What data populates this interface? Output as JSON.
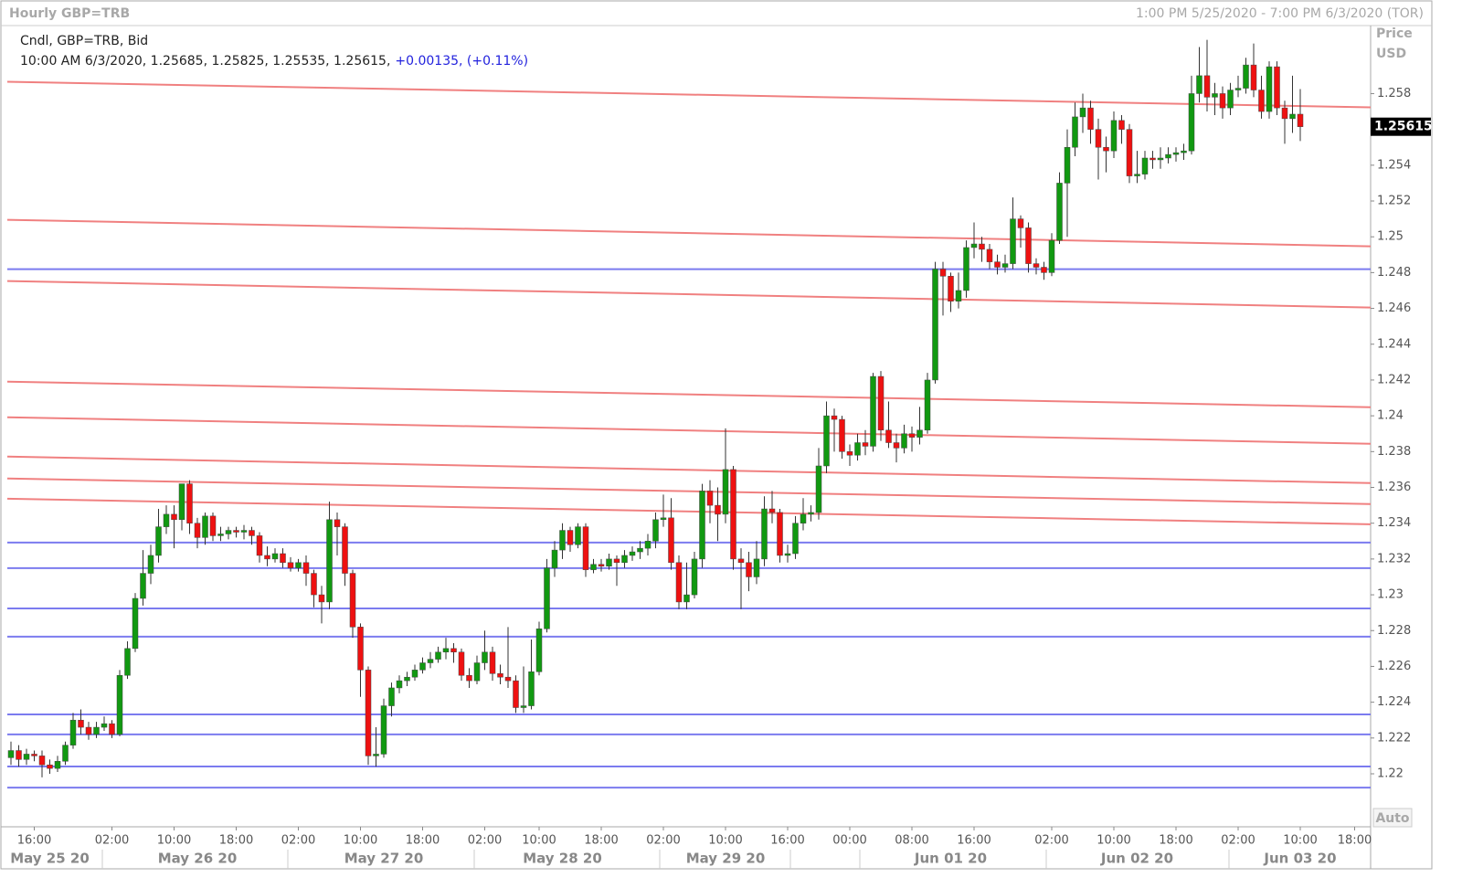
{
  "chart_data": {
    "type": "candlestick",
    "title": "Hourly GBP=TRB",
    "subtitle": "1:00 PM 5/25/2020 - 7:00 PM 6/3/2020 (TOR)",
    "y_axis_label": "Price",
    "y_axis_unit": "USD",
    "legend_line1": "Cndl, GBP=TRB, Bid",
    "legend_line2": "10:00 AM 6/3/2020, 1.25685, 1.25825, 1.25535, 1.25615,",
    "legend_change": "+0.00135, (+0.11%)",
    "auto_button": "Auto",
    "up_color": "#119911",
    "down_color": "#ee1111",
    "trendline_color": "#f08080",
    "level_color": "#7b7bef",
    "ylim": [
      1.21704,
      1.2618
    ],
    "yticks": [
      1.22,
      1.222,
      1.224,
      1.226,
      1.228,
      1.23,
      1.232,
      1.234,
      1.236,
      1.238,
      1.24,
      1.242,
      1.244,
      1.246,
      1.248,
      1.25,
      1.252,
      1.254,
      1.256,
      1.258
    ],
    "categories": [
      null,
      null,
      null,
      "16:00",
      null,
      null,
      null,
      null,
      null,
      null,
      null,
      null,
      null,
      "02:00",
      null,
      null,
      null,
      null,
      null,
      null,
      null,
      "10:00",
      null,
      null,
      null,
      null,
      null,
      null,
      null,
      "18:00",
      null,
      null,
      null,
      null,
      null,
      null,
      null,
      "02:00",
      null,
      null,
      null,
      null,
      null,
      null,
      null,
      "10:00",
      null,
      null,
      null,
      null,
      null,
      null,
      null,
      "18:00",
      null,
      null,
      null,
      null,
      null,
      null,
      null,
      "02:00",
      null,
      null,
      null,
      null,
      null,
      null,
      "10:00",
      null,
      null,
      null,
      null,
      null,
      null,
      null,
      "18:00",
      null,
      null,
      null,
      null,
      null,
      null,
      null,
      "02:00",
      null,
      null,
      null,
      null,
      null,
      null,
      null,
      "10:00",
      null,
      null,
      null,
      null,
      null,
      null,
      null,
      "16:00",
      null,
      null,
      null,
      null,
      null,
      null,
      null,
      "00:00",
      null,
      null,
      null,
      null,
      null,
      null,
      null,
      "08:00",
      null,
      null,
      null,
      null,
      null,
      null,
      null,
      "16:00",
      null,
      null,
      null,
      null,
      null,
      null,
      null,
      null,
      null,
      "02:00",
      null,
      null,
      null,
      null,
      null,
      null,
      null,
      "10:00",
      null,
      null,
      null,
      null,
      null,
      null,
      null,
      "18:00",
      null,
      null,
      null,
      null,
      null,
      null,
      null,
      "02:00",
      null,
      null,
      null,
      null,
      null,
      null,
      null,
      "10:00",
      null,
      null,
      null,
      null,
      null,
      null,
      "18:00"
    ],
    "dates": [
      null,
      null,
      null,
      null,
      null,
      "May 25 20",
      null,
      null,
      null,
      null,
      null,
      null,
      null,
      null,
      null,
      null,
      null,
      null,
      null,
      null,
      null,
      null,
      null,
      null,
      "May 26 20",
      null,
      null,
      null,
      null,
      null,
      null,
      null,
      null,
      null,
      null,
      null,
      null,
      null,
      null,
      null,
      null,
      null,
      null,
      null,
      null,
      null,
      null,
      null,
      "May 27 20",
      null,
      null,
      null,
      null,
      null,
      null,
      null,
      null,
      null,
      null,
      null,
      null,
      null,
      null,
      null,
      null,
      null,
      null,
      null,
      null,
      null,
      null,
      "May 28 20",
      null,
      null,
      null,
      null,
      null,
      null,
      null,
      null,
      null,
      null,
      null,
      null,
      null,
      null,
      null,
      null,
      null,
      null,
      null,
      null,
      "May 29 20",
      null,
      null,
      null,
      null,
      null,
      null,
      null,
      null,
      null,
      null,
      null,
      null,
      null,
      null,
      null,
      null,
      null,
      null,
      null,
      null,
      null,
      null,
      null,
      null,
      null,
      null,
      null,
      null,
      "Jun 01 20",
      null,
      null,
      null,
      null,
      null,
      null,
      null,
      null,
      null,
      null,
      null,
      null,
      null,
      null,
      null,
      null,
      null,
      null,
      null,
      null,
      null,
      null,
      null,
      "Jun 02 20",
      null,
      null,
      null,
      null,
      null,
      null,
      null,
      null,
      null,
      null,
      null,
      null,
      null,
      null,
      null,
      null,
      null,
      null,
      null,
      null,
      "Jun 03 20",
      null,
      null,
      null,
      null,
      null,
      null,
      null
    ],
    "open": [
      1.2209,
      1.2213,
      1.2208,
      1.2211,
      1.221,
      1.2205,
      1.2203,
      1.2207,
      1.2216,
      1.223,
      1.2226,
      1.2222,
      1.2226,
      1.2228,
      1.2222,
      1.2255,
      1.227,
      1.2298,
      1.2312,
      1.2322,
      1.2338,
      1.2345,
      1.2342,
      1.2362,
      1.234,
      1.2332,
      1.2344,
      1.2333,
      1.2334,
      1.2336,
      1.2335,
      1.2336,
      1.2333,
      1.2322,
      1.232,
      1.2323,
      1.2318,
      1.2315,
      1.2318,
      1.2312,
      1.23,
      1.2296,
      1.2342,
      1.2338,
      1.2312,
      1.2282,
      1.2258,
      1.221,
      1.2211,
      1.2238,
      1.2248,
      1.2252,
      1.2254,
      1.2258,
      1.2262,
      1.2264,
      1.2268,
      1.227,
      1.2268,
      1.2255,
      1.2252,
      1.2262,
      1.2268,
      1.2256,
      1.2254,
      1.2252,
      1.2237,
      1.2238,
      1.2257,
      1.2281,
      1.2315,
      1.2325,
      1.2336,
      1.2328,
      1.2338,
      1.2314,
      1.2317,
      1.2316,
      1.232,
      1.2318,
      1.2322,
      1.2324,
      1.2326,
      1.233,
      1.2342,
      1.2343,
      1.2318,
      1.2296,
      1.23,
      1.232,
      1.2358,
      1.235,
      1.2345,
      1.237,
      1.232,
      1.2318,
      1.231,
      1.232,
      1.2348,
      1.2346,
      1.2322,
      1.2323,
      1.234,
      1.2345,
      1.2346,
      1.2372,
      1.24,
      1.2398,
      1.238,
      1.2378,
      1.2385,
      1.2383,
      1.2422,
      1.2392,
      1.2385,
      1.2382,
      1.239,
      1.2388,
      1.2392,
      1.242,
      1.2482,
      1.2478,
      1.2464,
      1.247,
      1.2494,
      1.2496,
      1.2493,
      1.2486,
      1.2483,
      1.2485,
      1.251,
      1.2505,
      1.2485,
      1.2483,
      1.248,
      1.2498,
      1.253,
      1.255,
      1.2567,
      1.2572,
      1.256,
      1.255,
      1.2548,
      1.2565,
      1.256,
      1.2534,
      1.2535,
      1.2544,
      1.2543,
      1.2544,
      1.2546,
      1.2547,
      1.2548,
      1.258,
      1.259,
      1.2578,
      1.258,
      1.2572,
      1.2582,
      1.2583,
      1.2596,
      1.2582,
      1.257,
      1.2595,
      1.2572,
      1.2566,
      1.25685,
      null,
      null,
      null,
      null,
      null,
      null,
      null
    ],
    "high": [
      1.2218,
      1.2216,
      1.2214,
      1.2213,
      1.2213,
      1.2208,
      1.221,
      1.2218,
      1.2234,
      1.2236,
      1.2229,
      1.2229,
      1.2232,
      1.223,
      1.2258,
      1.2274,
      1.2301,
      1.2325,
      1.2328,
      1.2348,
      1.235,
      1.235,
      1.2362,
      1.2364,
      1.2343,
      1.2346,
      1.2346,
      1.2338,
      1.2338,
      1.2338,
      1.2339,
      1.2338,
      1.2335,
      1.2327,
      1.2326,
      1.2326,
      1.2321,
      1.232,
      1.2322,
      1.2314,
      1.2305,
      1.2352,
      1.2346,
      1.234,
      1.2314,
      1.2284,
      1.226,
      1.2226,
      1.2242,
      1.2251,
      1.2255,
      1.2257,
      1.2261,
      1.2265,
      1.2268,
      1.2271,
      1.2276,
      1.2273,
      1.227,
      1.2259,
      1.2266,
      1.228,
      1.2271,
      1.2261,
      1.2282,
      1.2255,
      1.226,
      1.2275,
      1.2285,
      1.232,
      1.233,
      1.234,
      1.2338,
      1.234,
      1.234,
      1.232,
      1.232,
      1.2323,
      1.2322,
      1.2325,
      1.2327,
      1.233,
      1.2334,
      1.2346,
      1.2356,
      1.2354,
      1.2322,
      1.2318,
      1.2324,
      1.2362,
      1.2364,
      1.236,
      1.2393,
      1.2372,
      1.2326,
      1.2324,
      1.233,
      1.2355,
      1.2358,
      1.2348,
      1.2328,
      1.2344,
      1.2354,
      1.235,
      1.2382,
      1.2408,
      1.2404,
      1.24,
      1.2384,
      1.239,
      1.2392,
      1.2424,
      1.2425,
      1.2408,
      1.239,
      1.2395,
      1.2394,
      1.2405,
      1.2424,
      1.2486,
      1.2486,
      1.248,
      1.248,
      1.2498,
      1.2508,
      1.25,
      1.2496,
      1.249,
      1.249,
      1.2522,
      1.2512,
      1.2508,
      1.2488,
      1.2486,
      1.2502,
      1.2536,
      1.256,
      1.2575,
      1.258,
      1.2576,
      1.2566,
      1.2556,
      1.257,
      1.2568,
      1.2563,
      1.2548,
      1.2548,
      1.2548,
      1.255,
      1.255,
      1.255,
      1.2552,
      1.259,
      1.2606,
      1.261,
      1.2586,
      1.2584,
      1.2586,
      1.259,
      1.26,
      1.2608,
      1.259,
      1.2598,
      1.2598,
      1.2576,
      1.259,
      1.25825,
      null,
      null,
      null,
      null,
      null,
      null,
      null
    ],
    "low": [
      1.2205,
      1.2204,
      1.2205,
      1.2207,
      1.2198,
      1.22,
      1.2201,
      1.2205,
      1.2214,
      1.2222,
      1.2219,
      1.222,
      1.2224,
      1.222,
      1.2221,
      1.2253,
      1.2268,
      1.2294,
      1.2306,
      1.2318,
      1.2334,
      1.2326,
      1.2336,
      1.2334,
      1.2326,
      1.2328,
      1.233,
      1.233,
      1.2331,
      1.2332,
      1.2331,
      1.2328,
      1.2318,
      1.2316,
      1.2318,
      1.2315,
      1.2313,
      1.2313,
      1.2305,
      1.2293,
      1.2284,
      1.2292,
      1.2322,
      1.2305,
      1.2276,
      1.2243,
      1.2205,
      1.2204,
      1.2209,
      1.2232,
      1.2245,
      1.2249,
      1.2252,
      1.2256,
      1.2259,
      1.2262,
      1.2264,
      1.2262,
      1.2252,
      1.2248,
      1.225,
      1.2258,
      1.2252,
      1.225,
      1.2248,
      1.2234,
      1.2234,
      1.2236,
      1.2255,
      1.2279,
      1.231,
      1.232,
      1.2324,
      1.2326,
      1.231,
      1.2312,
      1.2313,
      1.2314,
      1.2305,
      1.2315,
      1.2319,
      1.232,
      1.2322,
      1.2326,
      1.2338,
      1.2314,
      1.2292,
      1.2292,
      1.2298,
      1.2315,
      1.234,
      1.233,
      1.234,
      1.2314,
      1.2292,
      1.2302,
      1.2306,
      1.2316,
      1.234,
      1.2318,
      1.2318,
      1.232,
      1.2336,
      1.2341,
      1.2342,
      1.2368,
      1.238,
      1.2376,
      1.2372,
      1.2375,
      1.2378,
      1.238,
      1.2386,
      1.2382,
      1.2374,
      1.2379,
      1.238,
      1.2384,
      1.239,
      1.2418,
      1.2456,
      1.2458,
      1.246,
      1.2466,
      1.2488,
      1.2486,
      1.2482,
      1.2479,
      1.248,
      1.2482,
      1.2494,
      1.248,
      1.2479,
      1.2476,
      1.2478,
      1.2496,
      1.25,
      1.2545,
      1.2558,
      1.2552,
      1.2532,
      1.2536,
      1.2544,
      1.2552,
      1.253,
      1.253,
      1.2532,
      1.2538,
      1.2538,
      1.2541,
      1.2542,
      1.2543,
      1.2546,
      1.2575,
      1.257,
      1.2568,
      1.2566,
      1.2568,
      1.2578,
      1.258,
      1.2578,
      1.2566,
      1.2566,
      1.2568,
      1.2552,
      1.2558,
      1.25535,
      null,
      null,
      null,
      null,
      null,
      null,
      null
    ],
    "close": [
      1.2213,
      1.2208,
      1.2211,
      1.221,
      1.2205,
      1.2203,
      1.2207,
      1.2216,
      1.223,
      1.2226,
      1.2222,
      1.2226,
      1.2228,
      1.2222,
      1.2255,
      1.227,
      1.2298,
      1.2312,
      1.2322,
      1.2338,
      1.2345,
      1.2342,
      1.2362,
      1.234,
      1.2332,
      1.2344,
      1.2333,
      1.2334,
      1.2336,
      1.2335,
      1.2336,
      1.2333,
      1.2322,
      1.232,
      1.2323,
      1.2318,
      1.2315,
      1.2318,
      1.2312,
      1.23,
      1.2296,
      1.2342,
      1.2338,
      1.2312,
      1.2282,
      1.2258,
      1.221,
      1.2211,
      1.2238,
      1.2248,
      1.2252,
      1.2254,
      1.2258,
      1.2262,
      1.2264,
      1.2268,
      1.227,
      1.2268,
      1.2255,
      1.2252,
      1.2262,
      1.2268,
      1.2256,
      1.2254,
      1.2252,
      1.2237,
      1.2238,
      1.2257,
      1.2281,
      1.2315,
      1.2325,
      1.2336,
      1.2328,
      1.2338,
      1.2314,
      1.2317,
      1.2316,
      1.232,
      1.2318,
      1.2322,
      1.2324,
      1.2326,
      1.233,
      1.2342,
      1.2343,
      1.2318,
      1.2296,
      1.23,
      1.232,
      1.2358,
      1.235,
      1.2345,
      1.237,
      1.232,
      1.2318,
      1.231,
      1.232,
      1.2348,
      1.2346,
      1.2322,
      1.2323,
      1.234,
      1.2345,
      1.2346,
      1.2372,
      1.24,
      1.2398,
      1.238,
      1.2378,
      1.2385,
      1.2383,
      1.2422,
      1.2392,
      1.2385,
      1.2382,
      1.239,
      1.2388,
      1.2392,
      1.242,
      1.2482,
      1.2478,
      1.2464,
      1.247,
      1.2494,
      1.2496,
      1.2493,
      1.2486,
      1.2483,
      1.2485,
      1.251,
      1.2505,
      1.2485,
      1.2483,
      1.248,
      1.2498,
      1.253,
      1.255,
      1.2567,
      1.2572,
      1.256,
      1.255,
      1.2548,
      1.2565,
      1.256,
      1.2534,
      1.2535,
      1.2544,
      1.2543,
      1.2544,
      1.2546,
      1.2547,
      1.2548,
      1.258,
      1.259,
      1.2578,
      1.258,
      1.2572,
      1.2582,
      1.2583,
      1.2596,
      1.2582,
      1.257,
      1.2595,
      1.2572,
      1.2566,
      1.25685,
      1.25615,
      null,
      null,
      null,
      null,
      null,
      null,
      null
    ],
    "trendlines": [
      {
        "start": 1.25866,
        "end": 1.25723
      },
      {
        "start": 1.25095,
        "end": 1.24947
      },
      {
        "start": 1.24753,
        "end": 1.24605
      },
      {
        "start": 1.24191,
        "end": 1.24048
      },
      {
        "start": 1.23992,
        "end": 1.23844
      },
      {
        "start": 1.23772,
        "end": 1.23624
      },
      {
        "start": 1.2365,
        "end": 1.23507
      },
      {
        "start": 1.23537,
        "end": 1.23394
      }
    ],
    "levels": [
      1.24819,
      1.23292,
      1.23149,
      1.22924,
      1.22766,
      1.22332,
      1.2222,
      1.22041,
      1.21923
    ]
  }
}
